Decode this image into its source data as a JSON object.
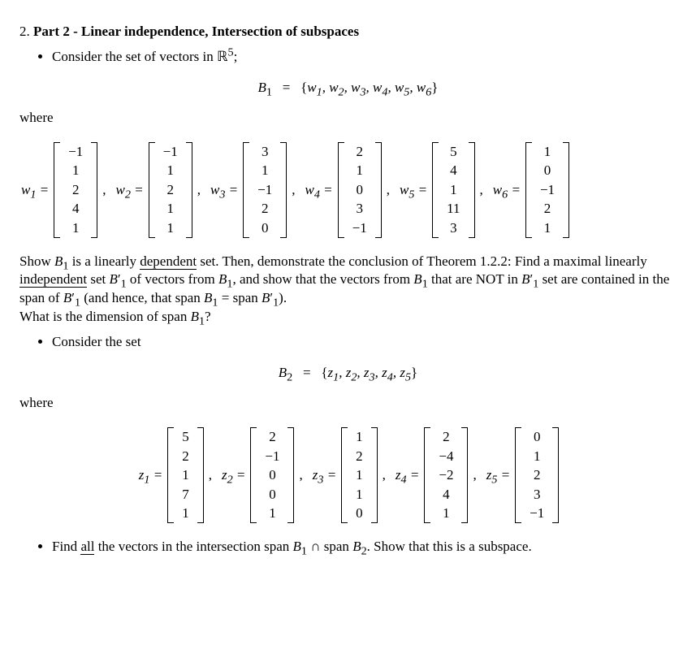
{
  "header": {
    "number": "2.",
    "title": "Part 2 - Linear independence, Intersection of subspaces"
  },
  "part_a": {
    "intro_prefix": "Consider the set of vectors in ",
    "space_symbol": "ℝ",
    "space_exp": "5",
    "intro_suffix": ";",
    "set_label": "B",
    "set_label_sub": "1",
    "equals": "=",
    "set_open": "{",
    "set_elems": "w",
    "set_elems_text": "w₁, w₂, w₃, w₄, w₅, w₆",
    "set_close": "}",
    "where": "where",
    "vectors": [
      {
        "name": "w",
        "sub": "1",
        "vals": [
          "−1",
          "1",
          "2",
          "4",
          "1"
        ]
      },
      {
        "name": "w",
        "sub": "2",
        "vals": [
          "−1",
          "1",
          "2",
          "1",
          "1"
        ]
      },
      {
        "name": "w",
        "sub": "3",
        "vals": [
          "3",
          "1",
          "−1",
          "2",
          "0"
        ]
      },
      {
        "name": "w",
        "sub": "4",
        "vals": [
          "2",
          "1",
          "0",
          "3",
          "−1"
        ]
      },
      {
        "name": "w",
        "sub": "5",
        "vals": [
          "5",
          "4",
          "1",
          "11",
          "3"
        ]
      },
      {
        "name": "w",
        "sub": "6",
        "vals": [
          "1",
          "0",
          "−1",
          "2",
          "1"
        ]
      }
    ],
    "body1_a": "Show ",
    "body1_b": " is a linearly ",
    "body1_dep": "dependent",
    "body1_c": " set.  Then, demonstrate the conclusion of Theorem 1.2.2: Find a maximal linearly ",
    "body1_indep": "independent",
    "body1_d": " set ",
    "body1_e": " of vectors from ",
    "body1_f": ", and show that the vectors from ",
    "body1_g": " that are NOT in ",
    "body1_h": " set are contained in the span of ",
    "body1_i": " (and hence, that span ",
    "body1_j": " = span ",
    "body1_k": ").",
    "body2": "What is the dimension of span ",
    "body2_end": "?"
  },
  "part_b": {
    "intro": "Consider the set",
    "set_label": "B",
    "set_label_sub": "2",
    "equals": "=",
    "set_open": "{",
    "set_elems_text": "z₁, z₂, z₃, z₄, z₅",
    "set_close": "}",
    "where": "where",
    "vectors": [
      {
        "name": "z",
        "sub": "1",
        "vals": [
          "5",
          "2",
          "1",
          "7",
          "1"
        ]
      },
      {
        "name": "z",
        "sub": "2",
        "vals": [
          "2",
          "−1",
          "0",
          "0",
          "1"
        ]
      },
      {
        "name": "z",
        "sub": "3",
        "vals": [
          "1",
          "2",
          "1",
          "1",
          "0"
        ]
      },
      {
        "name": "z",
        "sub": "4",
        "vals": [
          "2",
          "−4",
          "−2",
          "4",
          "1"
        ]
      },
      {
        "name": "z",
        "sub": "5",
        "vals": [
          "0",
          "1",
          "2",
          "3",
          "−1"
        ]
      }
    ]
  },
  "part_c": {
    "text_a": "Find ",
    "text_all": "all",
    "text_b": " the vectors in the intersection span ",
    "text_c": " ∩ span ",
    "text_d": ". Show that this is a subspace."
  }
}
